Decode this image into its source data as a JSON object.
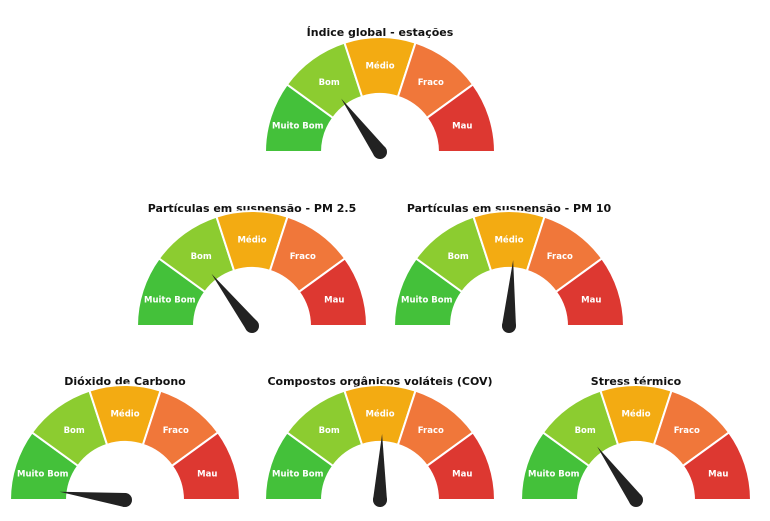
{
  "colors": {
    "muito_bom": "#44c13a",
    "bom": "#8ccc30",
    "medio": "#f3ab12",
    "fraco": "#f0773a",
    "mau": "#dd3831",
    "needle": "#222222"
  },
  "segments": [
    "Muito Bom",
    "Bom",
    "Médio",
    "Fraco",
    "Mau"
  ],
  "gauges": [
    {
      "title": "Índice global - estações",
      "level": 0.3
    },
    {
      "title": "Partículas em suspensão - PM 2.5",
      "level": 0.29
    },
    {
      "title": "Partículas em suspensão - PM 10",
      "level": 0.52
    },
    {
      "title": "Dióxido de Carbono",
      "level": 0.04
    },
    {
      "title": "Compostos orgânicos voláteis (COV)",
      "level": 0.51
    },
    {
      "title": "Stress térmico",
      "level": 0.3
    }
  ]
}
